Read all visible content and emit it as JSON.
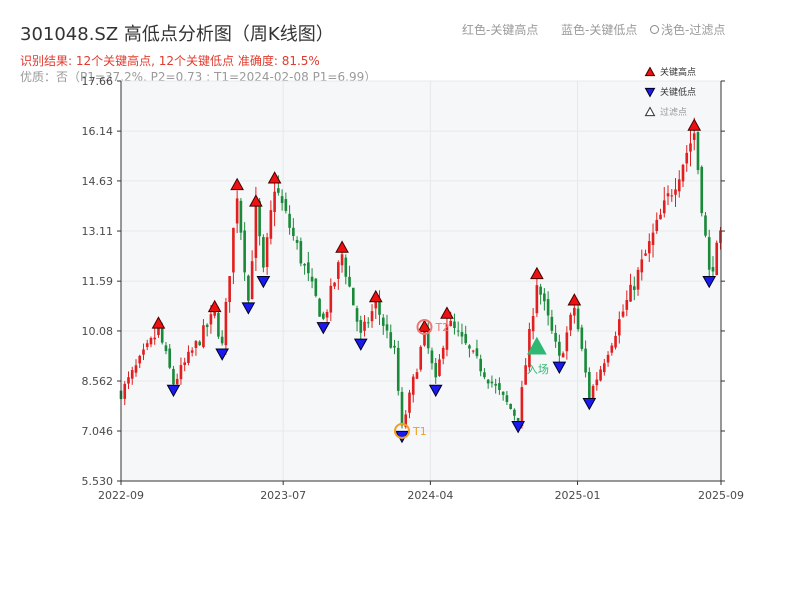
{
  "header": {
    "title": "301048.SZ 高低点分析图（周K线图）",
    "result_line": "识别结果: 12个关键高点, 12个关键低点   准确度: 81.5%",
    "quality_line": "优质：否（P1=37.2%, P2=0.73 ; T1=2024-02-08 P1=6.99）",
    "legend_red": "红色-关键高点",
    "legend_blue": "蓝色-关键低点",
    "legend_light": "浅色-过滤点"
  },
  "colors": {
    "up": "#e02020",
    "down": "#1a8a3a",
    "high": "#ee1111",
    "low": "#1a1aee",
    "t_marker": "#f0a020",
    "entry": "#2eb872",
    "plot_bg": "#f6f7f9",
    "grid": "#e6e8ec"
  },
  "legend": {
    "high": "关键高点",
    "low": "关键低点",
    "filtered": "过滤点"
  },
  "markers": {
    "t1": "T1",
    "t2": "T2",
    "entry": "入场"
  },
  "chart_data": {
    "type": "candlestick",
    "title": "301048.SZ 高低点分析图（周K线图）",
    "y_ticks": [
      "5.530",
      "7.046",
      "8.562",
      "10.08",
      "11.59",
      "13.11",
      "14.63",
      "16.14",
      "17.66"
    ],
    "ylim": [
      5.53,
      17.66
    ],
    "x_ticks": [
      "2022-09",
      "2023-07",
      "2024-04",
      "2025-01",
      "2025-09"
    ],
    "x_range": [
      "2022-09-01",
      "2025-09-26"
    ],
    "price_path": [
      [
        "2022-09-01",
        8.2
      ],
      [
        "2022-11-10",
        10.1
      ],
      [
        "2022-12-08",
        8.5
      ],
      [
        "2023-02-23",
        10.6
      ],
      [
        "2023-03-09",
        9.6
      ],
      [
        "2023-04-06",
        14.3
      ],
      [
        "2023-04-27",
        11.0
      ],
      [
        "2023-05-11",
        13.8
      ],
      [
        "2023-05-25",
        11.8
      ],
      [
        "2023-06-15",
        14.5
      ],
      [
        "2023-09-14",
        10.4
      ],
      [
        "2023-10-19",
        12.4
      ],
      [
        "2023-11-23",
        9.9
      ],
      [
        "2023-12-21",
        10.9
      ],
      [
        "2024-01-25",
        9.4
      ],
      [
        "2024-02-08",
        7.1
      ],
      [
        "2024-03-21",
        10.0
      ],
      [
        "2024-04-11",
        8.5
      ],
      [
        "2024-05-02",
        10.4
      ],
      [
        "2024-09-12",
        7.4
      ],
      [
        "2024-10-17",
        11.6
      ],
      [
        "2024-11-28",
        9.2
      ],
      [
        "2024-12-26",
        10.8
      ],
      [
        "2025-01-23",
        8.1
      ],
      [
        "2025-08-07",
        16.1
      ],
      [
        "2025-09-04",
        11.8
      ],
      [
        "2025-09-26",
        12.9
      ]
    ],
    "key_highs": [
      {
        "date": "2022-11-10",
        "value": 10.1
      },
      {
        "date": "2023-02-23",
        "value": 10.6
      },
      {
        "date": "2023-04-06",
        "value": 14.3
      },
      {
        "date": "2023-05-11",
        "value": 13.8
      },
      {
        "date": "2023-06-15",
        "value": 14.5
      },
      {
        "date": "2023-10-19",
        "value": 12.4
      },
      {
        "date": "2023-12-21",
        "value": 10.9
      },
      {
        "date": "2024-03-21",
        "value": 10.0
      },
      {
        "date": "2024-05-02",
        "value": 10.4
      },
      {
        "date": "2024-10-17",
        "value": 11.6
      },
      {
        "date": "2024-12-26",
        "value": 10.8
      },
      {
        "date": "2025-08-07",
        "value": 16.1
      }
    ],
    "key_lows": [
      {
        "date": "2022-12-08",
        "value": 8.5
      },
      {
        "date": "2023-03-09",
        "value": 9.6
      },
      {
        "date": "2023-04-27",
        "value": 11.0
      },
      {
        "date": "2023-05-25",
        "value": 11.8
      },
      {
        "date": "2023-09-14",
        "value": 10.4
      },
      {
        "date": "2023-11-23",
        "value": 9.9
      },
      {
        "date": "2024-02-08",
        "value": 7.1
      },
      {
        "date": "2024-04-11",
        "value": 8.5
      },
      {
        "date": "2024-09-12",
        "value": 7.4
      },
      {
        "date": "2024-11-28",
        "value": 9.2
      },
      {
        "date": "2025-01-23",
        "value": 8.1
      },
      {
        "date": "2025-09-04",
        "value": 11.8
      }
    ],
    "t1": {
      "date": "2024-02-08",
      "value": 7.05
    },
    "t2": {
      "date": "2024-03-21",
      "value": 10.2
    },
    "entry": {
      "date": "2024-10-17",
      "value": 9.6
    },
    "legend_position": "top-right",
    "grid": true
  }
}
